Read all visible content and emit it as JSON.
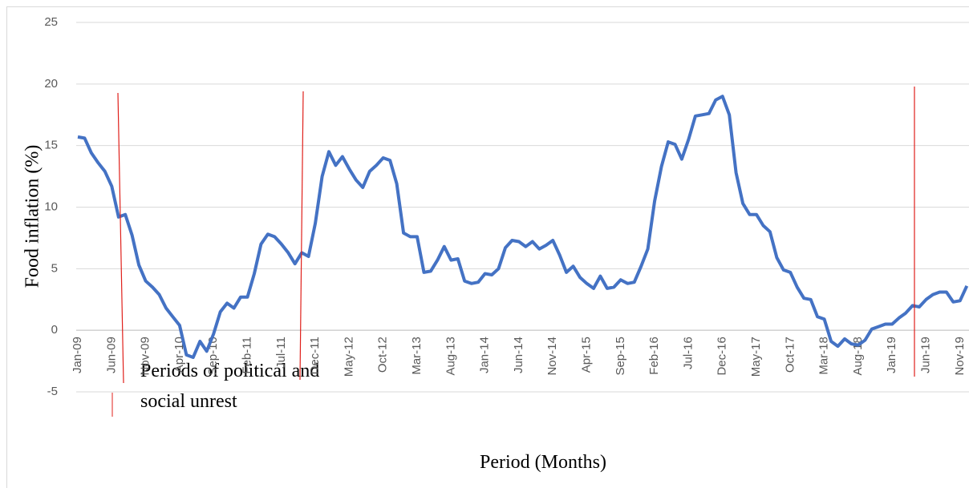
{
  "chart_data": {
    "type": "line",
    "y_label": "Food inflation (%)",
    "x_label": "Period (Months)",
    "annotation_legend": [
      "Periods of political and",
      "social unrest"
    ],
    "categories": [
      "Jan-09",
      null,
      null,
      null,
      null,
      "Jun-09",
      null,
      null,
      null,
      null,
      "Nov-09",
      null,
      null,
      null,
      null,
      "Apr-10",
      null,
      null,
      null,
      null,
      "Sep-10",
      null,
      null,
      null,
      null,
      "Feb-11",
      null,
      null,
      null,
      null,
      "Jul-11",
      null,
      null,
      null,
      null,
      "Dec-11",
      null,
      null,
      null,
      null,
      "May-12",
      null,
      null,
      null,
      null,
      "Oct-12",
      null,
      null,
      null,
      null,
      "Mar-13",
      null,
      null,
      null,
      null,
      "Aug-13",
      null,
      null,
      null,
      null,
      "Jan-14",
      null,
      null,
      null,
      null,
      "Jun-14",
      null,
      null,
      null,
      null,
      "Nov-14",
      null,
      null,
      null,
      null,
      "Apr-15",
      null,
      null,
      null,
      null,
      "Sep-15",
      null,
      null,
      null,
      null,
      "Feb-16",
      null,
      null,
      null,
      null,
      "Jul-16",
      null,
      null,
      null,
      null,
      "Dec-16",
      null,
      null,
      null,
      null,
      "May-17",
      null,
      null,
      null,
      null,
      "Oct-17",
      null,
      null,
      null,
      null,
      "Mar-18",
      null,
      null,
      null,
      null,
      "Aug-18",
      null,
      null,
      null,
      null,
      "Jan-19",
      null,
      null,
      null,
      null,
      "Jun-19",
      null,
      null,
      null,
      null,
      "Nov-19",
      null
    ],
    "series": [
      {
        "color": "#4472c4",
        "values": [
          15.7,
          15.6,
          14.4,
          13.6,
          12.9,
          11.7,
          9.2,
          9.4,
          7.7,
          5.3,
          4.0,
          3.5,
          2.9,
          1.8,
          1.1,
          0.4,
          -2.0,
          -2.2,
          -0.9,
          -1.7,
          -0.3,
          1.5,
          2.2,
          1.8,
          2.7,
          2.7,
          4.6,
          7.0,
          7.8,
          7.6,
          7.0,
          6.3,
          5.4,
          6.3,
          6.0,
          8.7,
          12.5,
          14.5,
          13.4,
          14.1,
          13.1,
          12.2,
          11.6,
          12.9,
          13.4,
          14.0,
          13.8,
          11.9,
          7.9,
          7.6,
          7.6,
          4.7,
          4.8,
          5.7,
          6.8,
          5.7,
          5.8,
          4.0,
          3.8,
          3.9,
          4.6,
          4.5,
          5.0,
          6.7,
          7.3,
          7.2,
          6.8,
          7.2,
          6.6,
          6.9,
          7.3,
          6.1,
          4.7,
          5.2,
          4.3,
          3.8,
          3.4,
          4.4,
          3.4,
          3.5,
          4.1,
          3.8,
          3.9,
          5.2,
          6.6,
          10.5,
          13.3,
          15.3,
          15.1,
          13.9,
          15.5,
          17.4,
          17.5,
          17.6,
          18.7,
          19.0,
          17.5,
          12.8,
          10.3,
          9.4,
          9.4,
          8.5,
          8.0,
          5.9,
          4.9,
          4.7,
          3.5,
          2.6,
          2.5,
          1.1,
          0.9,
          -0.9,
          -1.3,
          -0.7,
          -1.1,
          -1.2,
          -0.8,
          0.1,
          0.3,
          0.5,
          0.5,
          1.0,
          1.4,
          2.0,
          1.9,
          2.5,
          2.9,
          3.1,
          3.1,
          2.3,
          2.4,
          3.6
        ]
      }
    ],
    "ylim": [
      -5,
      25
    ],
    "yticks": [
      -5,
      0,
      5,
      10,
      15,
      20,
      25
    ],
    "grid": true
  }
}
